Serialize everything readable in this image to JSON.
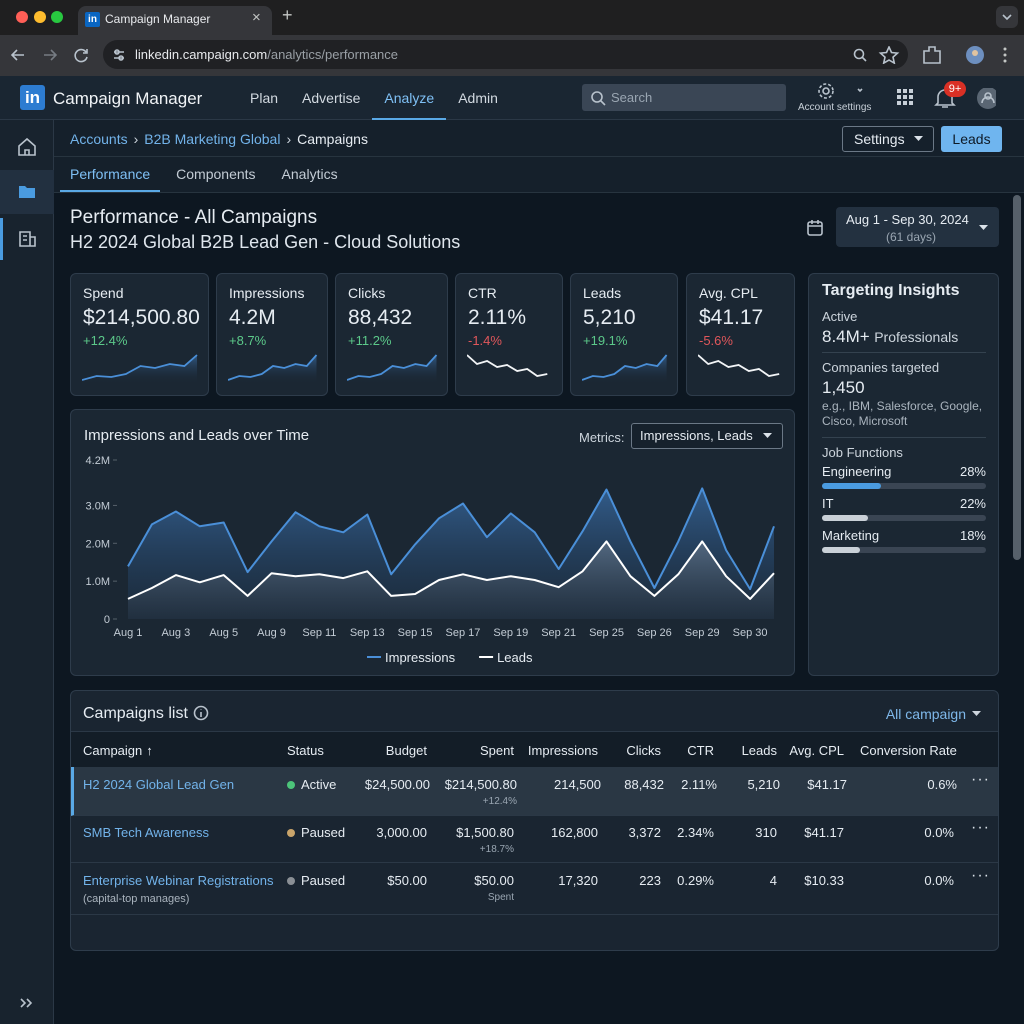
{
  "browser": {
    "tab_title": "Campaign Manager",
    "url_host": "linkedin.campaign.com",
    "url_path": "/analytics/performance"
  },
  "app": {
    "name": "Campaign Manager",
    "nav": [
      {
        "label": "Plan"
      },
      {
        "label": "Advertise"
      },
      {
        "label": "Analyze",
        "active": true
      },
      {
        "label": "Admin"
      }
    ],
    "search_placeholder": "Search",
    "account_settings": "Account settings",
    "notification_count": "9+"
  },
  "breadcrumb": [
    "Accounts",
    "B2B Marketing Global",
    "Campaigns"
  ],
  "buttons": {
    "settings": "Settings",
    "leads": "Leads"
  },
  "tabs": [
    {
      "label": "Performance",
      "active": true
    },
    {
      "label": "Components"
    },
    {
      "label": "Analytics"
    }
  ],
  "header": {
    "title": "Performance - All Campaigns",
    "subtitle": "H2 2024 Global B2B Lead Gen - Cloud Solutions",
    "date_range": "Aug 1 - Sep 30, 2024",
    "days": "(61 days)"
  },
  "kpis": [
    {
      "label": "Spend",
      "value": "$214,500.80",
      "change": "+12.4%",
      "trend": "up"
    },
    {
      "label": "Impressions",
      "value": "4.2M",
      "change": "+8.7%",
      "trend": "up"
    },
    {
      "label": "Clicks",
      "value": "88,432",
      "change": "+11.2%",
      "trend": "up"
    },
    {
      "label": "CTR",
      "value": "2.11%",
      "change": "-1.4%",
      "trend": "down"
    },
    {
      "label": "Leads",
      "value": "5,210",
      "change": "+19.1%",
      "trend": "up"
    },
    {
      "label": "Avg. CPL",
      "value": "$41.17",
      "change": "-5.6%",
      "trend": "down"
    }
  ],
  "targeting": {
    "title": "Targeting Insights",
    "active_label": "Active",
    "active_value": "8.4M+",
    "active_unit": "Professionals",
    "companies_label": "Companies targeted",
    "companies_value": "1,450",
    "companies_examples": "e.g., IBM, Salesforce, Google, Cisco, Microsoft",
    "job_functions_label": "Job Functions",
    "job_functions": [
      {
        "name": "Engineering",
        "value": 28,
        "label": "28%"
      },
      {
        "name": "IT",
        "value": 22,
        "label": "22%"
      },
      {
        "name": "Marketing",
        "value": 18,
        "label": "18%"
      }
    ]
  },
  "chart_data": {
    "type": "line",
    "title": "Impressions and Leads over Time",
    "metrics_label": "Metrics:",
    "metrics_value": "Impressions, Leads",
    "categories": [
      "Aug 1",
      null,
      "Aug 3",
      null,
      "Aug 5",
      null,
      "Aug 9",
      null,
      "Sep 11",
      null,
      "Sep 13",
      null,
      "Sep 15",
      null,
      "Sep 17",
      null,
      "Sep 19",
      null,
      "Sep 21",
      null,
      "Sep 25",
      null,
      "Sep 26",
      null,
      "Sep 29",
      null,
      "Sep 30",
      null
    ],
    "series": [
      {
        "name": "Impressions",
        "color": "#4a8fd8",
        "fill": true,
        "values": [
          1390000,
          2500000,
          2840000,
          2450000,
          2550000,
          1240000,
          2050000,
          2820000,
          2450000,
          2290000,
          2760000,
          1180000,
          1970000,
          2660000,
          3050000,
          2160000,
          2790000,
          2290000,
          1320000,
          2320000,
          3420000,
          2050000,
          820000,
          2050000,
          3450000,
          1820000,
          790000,
          2450000
        ]
      },
      {
        "name": "Leads",
        "color": "#ffffff",
        "values": [
          530000,
          820000,
          1160000,
          970000,
          1160000,
          610000,
          1210000,
          1130000,
          1180000,
          1080000,
          1260000,
          610000,
          660000,
          1030000,
          1180000,
          1030000,
          1130000,
          1030000,
          840000,
          1260000,
          2050000,
          1130000,
          610000,
          1180000,
          2050000,
          1130000,
          530000,
          1210000
        ]
      }
    ],
    "ylim": [
      0,
      4200000
    ],
    "yticks": [
      0,
      {
        "value": 1000000,
        "label": "1.0M"
      },
      {
        "value": 2000000,
        "label": "2.0M"
      },
      {
        "value": 3000000,
        "label": "3.0M"
      },
      {
        "value": 4200000,
        "label": "4.2M"
      }
    ],
    "grid": false,
    "legend": "bottom"
  },
  "campaigns": {
    "title": "Campaigns list",
    "filter": "All campaign",
    "columns": [
      "Campaign",
      "Status",
      "Budget",
      "Spent",
      "Impressions",
      "Clicks",
      "CTR",
      "Leads",
      "Avg. CPL",
      "Conversion Rate"
    ],
    "rows": [
      {
        "name": "H2 2024 Global Lead Gen",
        "status": "Active",
        "status_color": "#4cc47a",
        "budget": "$24,500.00",
        "spent": "$214,500.80",
        "spent_note": "+12.4%",
        "impressions": "214,500",
        "clicks": "88,432",
        "ctr": "2.11%",
        "leads": "5,210",
        "avg_cpl": "$41.17",
        "conversion_rate": "0.6%",
        "selected": true
      },
      {
        "name": "SMB Tech Awareness",
        "status": "Paused",
        "status_color": "#c9a46a",
        "budget": "3,000.00",
        "spent": "$1,500.80",
        "spent_note": "+18.7%",
        "impressions": "162,800",
        "clicks": "3,372",
        "ctr": "2.34%",
        "leads": "310",
        "avg_cpl": "$41.17",
        "conversion_rate": "0.0%"
      },
      {
        "name": "Enterprise Webinar Registrations",
        "note": "(capital-top manages)",
        "status": "Paused",
        "status_color": "#8a8f95",
        "budget": "$50.00",
        "spent": "$50.00",
        "spent_note": "Spent",
        "impressions": "17,320",
        "clicks": "223",
        "ctr": "0.29%",
        "leads": "4",
        "avg_cpl": "$10.33",
        "conversion_rate": "0.0%"
      }
    ]
  }
}
